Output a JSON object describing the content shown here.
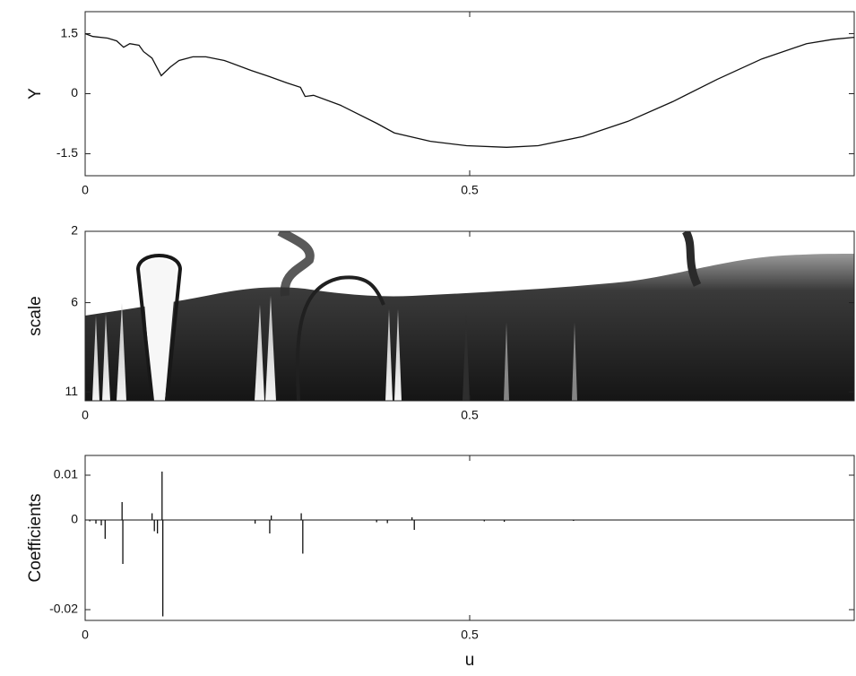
{
  "chart_data": [
    {
      "type": "line",
      "ylabel": "Y",
      "x": [
        0,
        0.01,
        0.029,
        0.041,
        0.05,
        0.058,
        0.07,
        0.076,
        0.087,
        0.099,
        0.111,
        0.122,
        0.14,
        0.157,
        0.181,
        0.216,
        0.239,
        0.262,
        0.28,
        0.286,
        0.297,
        0.332,
        0.379,
        0.402,
        0.449,
        0.496,
        0.548,
        0.589,
        0.647,
        0.706,
        0.764,
        0.822,
        0.88,
        0.938,
        0.973,
        1
      ],
      "values": [
        1.5,
        1.43,
        1.39,
        1.32,
        1.16,
        1.25,
        1.21,
        1.05,
        0.89,
        0.45,
        0.67,
        0.83,
        0.92,
        0.92,
        0.83,
        0.58,
        0.43,
        0.27,
        0.16,
        -0.07,
        -0.04,
        -0.29,
        -0.74,
        -0.98,
        -1.19,
        -1.3,
        -1.34,
        -1.3,
        -1.07,
        -0.69,
        -0.2,
        0.36,
        0.87,
        1.25,
        1.36,
        1.41
      ],
      "color": "#111111",
      "xlim": [
        0,
        1
      ],
      "xticks": [
        0,
        0.5
      ],
      "ylim": [
        -2.05,
        2.05
      ],
      "yticks": [
        -1.5,
        0,
        1.5
      ]
    },
    {
      "type": "heatmap",
      "ylabel": "scale",
      "xlim": [
        0,
        1
      ],
      "xticks": [
        0,
        0.5
      ],
      "ylim": [
        2,
        11.5
      ],
      "yticks": [
        2,
        6,
        11
      ],
      "yreverse": true
    },
    {
      "type": "stem",
      "ylabel": "Coefficients",
      "xlabel": "u",
      "x": [
        0.006,
        0.014,
        0.021,
        0.026,
        0.048,
        0.049,
        0.087,
        0.09,
        0.094,
        0.1,
        0.101,
        0.221,
        0.24,
        0.242,
        0.281,
        0.283,
        0.379,
        0.393,
        0.425,
        0.428,
        0.519,
        0.545,
        0.635
      ],
      "values": [
        -0.0003,
        -0.0008,
        -0.0012,
        -0.0042,
        0.004,
        -0.0098,
        0.0015,
        -0.0025,
        -0.003,
        0.0108,
        -0.0215,
        -0.0008,
        -0.003,
        0.001,
        0.0015,
        -0.0075,
        -0.0005,
        -0.0007,
        0.0006,
        -0.0022,
        -0.0003,
        -0.0004,
        -0.0002
      ],
      "color": "#111111",
      "xlim": [
        0,
        1
      ],
      "xticks": [
        0,
        0.5
      ],
      "ylim": [
        -0.0224,
        0.0144
      ],
      "yticks": [
        -0.02,
        0,
        0.01
      ]
    }
  ]
}
